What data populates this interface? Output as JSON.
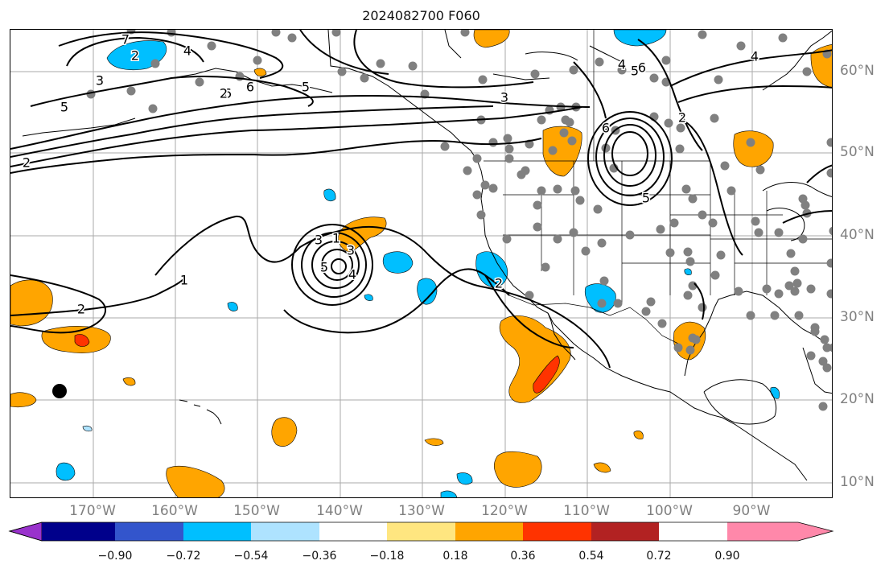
{
  "title": "2024082700 F060",
  "lat_labels": [
    "60°N",
    "50°N",
    "40°N",
    "30°N",
    "20°N",
    "10°N"
  ],
  "lon_labels": [
    "170°W",
    "160°W",
    "150°W",
    "140°W",
    "130°W",
    "120°W",
    "110°W",
    "100°W",
    "90°W"
  ],
  "contour_labels": [
    "7",
    "2",
    "4",
    "3",
    "6",
    "6",
    "5",
    "2",
    "3",
    "4",
    "6",
    "5",
    "2",
    "6",
    "5",
    "5",
    "4",
    "2",
    "3",
    "1",
    "1",
    "2",
    "3",
    "5",
    "4",
    "2"
  ],
  "colorbar": {
    "ticks": [
      "−0.90",
      "−0.72",
      "−0.54",
      "−0.36",
      "−0.18",
      "0.18",
      "0.36",
      "0.54",
      "0.72",
      "0.90"
    ],
    "colors": [
      "#9932cc",
      "#00008b",
      "#3355cc",
      "#00bfff",
      "#aee3ff",
      "#ffffff",
      "#ffe680",
      "#ffa500",
      "#ff3300",
      "#b22222",
      "#ff88aa"
    ]
  },
  "colors": {
    "positive_low": "#ffa500",
    "positive_high": "#ff3300",
    "negative": "#00bfff",
    "negative_light": "#aee3ff",
    "station": "#808080"
  }
}
